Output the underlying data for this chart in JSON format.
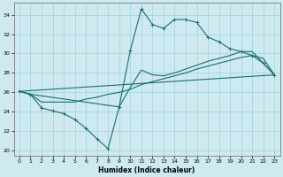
{
  "xlabel": "Humidex (Indice chaleur)",
  "bg_color": "#ceeaf0",
  "grid_color": "#a8d5de",
  "line_color": "#1a6e6a",
  "xlim": [
    -0.5,
    23.5
  ],
  "ylim": [
    19.5,
    35.2
  ],
  "xticks": [
    0,
    1,
    2,
    3,
    4,
    5,
    6,
    7,
    8,
    9,
    10,
    11,
    12,
    13,
    14,
    15,
    16,
    17,
    18,
    19,
    20,
    21,
    22,
    23
  ],
  "yticks": [
    20,
    22,
    24,
    26,
    28,
    30,
    32,
    34
  ],
  "curve1_x": [
    0,
    1,
    2,
    3,
    4,
    5,
    6,
    7,
    8,
    9,
    10,
    11,
    12,
    13,
    14,
    15,
    16,
    17,
    18,
    19,
    20,
    21,
    22,
    23
  ],
  "curve1_y": [
    26.1,
    25.8,
    24.4,
    24.1,
    23.8,
    23.2,
    22.3,
    21.2,
    20.2,
    24.5,
    30.3,
    34.6,
    33.0,
    32.6,
    33.5,
    33.5,
    33.2,
    31.7,
    31.2,
    30.5,
    30.2,
    29.8,
    29.0,
    27.8
  ],
  "curve2_x": [
    0,
    1,
    2,
    3,
    4,
    5,
    6,
    7,
    8,
    9,
    10,
    11,
    12,
    13,
    14,
    15,
    16,
    17,
    18,
    19,
    20,
    21,
    22,
    23
  ],
  "curve2_y": [
    26.1,
    25.8,
    25.0,
    25.0,
    25.0,
    25.0,
    25.3,
    25.5,
    25.8,
    26.0,
    26.3,
    26.8,
    27.1,
    27.4,
    27.7,
    28.0,
    28.4,
    28.7,
    29.0,
    29.3,
    29.6,
    29.8,
    29.5,
    27.8
  ],
  "curve3_x": [
    0,
    23
  ],
  "curve3_y": [
    26.1,
    27.8
  ],
  "curve4_x": [
    0,
    1,
    9,
    10,
    11,
    12,
    13,
    14,
    15,
    16,
    17,
    18,
    19,
    20,
    21,
    22,
    23
  ],
  "curve4_y": [
    26.1,
    25.8,
    24.5,
    26.5,
    28.3,
    27.8,
    27.7,
    28.0,
    28.4,
    28.8,
    29.2,
    29.5,
    29.8,
    30.2,
    30.2,
    29.0,
    27.8
  ]
}
